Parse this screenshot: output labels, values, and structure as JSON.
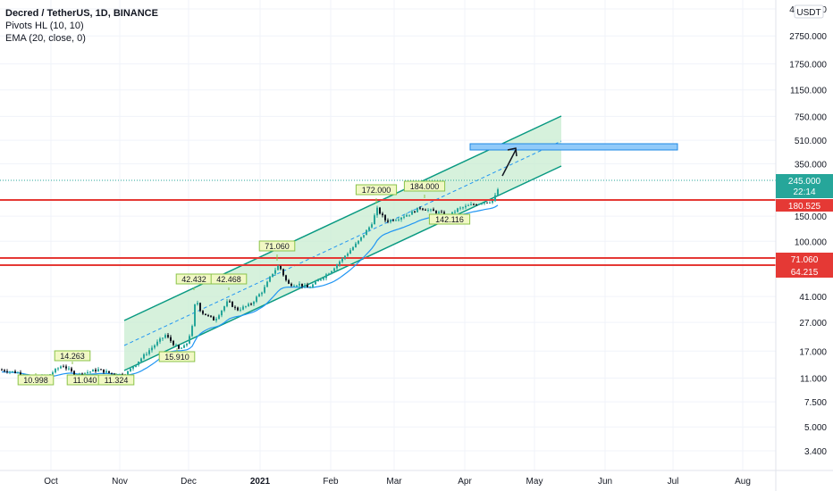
{
  "legend": {
    "title": "Decred / TetherUS, 1D, BINANCE",
    "line2": "Pivots HL (10, 10)",
    "line3": "EMA (20, close, 0)"
  },
  "currency": "USDT",
  "chart_data": {
    "type": "candlestick",
    "scale": "log",
    "x_ticks": [
      "Oct",
      "Nov",
      "Dec",
      "2021",
      "Feb",
      "Mar",
      "Apr",
      "May",
      "Jun",
      "Jul",
      "Aug"
    ],
    "y_ticks": [
      "4250.000",
      "2750.000",
      "1750.000",
      "1150.000",
      "750.000",
      "510.000",
      "350.000",
      "245.000",
      "150.000",
      "100.000",
      "71.060",
      "64.215",
      "41.000",
      "27.000",
      "17.000",
      "11.000",
      "7.500",
      "5.000",
      "3.400"
    ],
    "price_label": "245.000",
    "countdown_label": "22:14",
    "horizontal_levels": [
      {
        "label": "180.525",
        "color": "#e53935"
      },
      {
        "label": "71.060",
        "color": "#e53935"
      },
      {
        "label": "64.215",
        "color": "#e53935"
      }
    ],
    "pivot_labels": [
      "10.998",
      "14.263",
      "11.040",
      "11.324",
      "15.910",
      "42.432",
      "42.468",
      "71.060",
      "172.000",
      "184.000",
      "142.116"
    ],
    "colors": {
      "up": "#26a69a",
      "down": "#131722",
      "channel": "#089981",
      "channel_fill": "#c8ecd0",
      "level": "#e53935",
      "target_box": "#90caf9",
      "ema": "#2196f3"
    }
  }
}
